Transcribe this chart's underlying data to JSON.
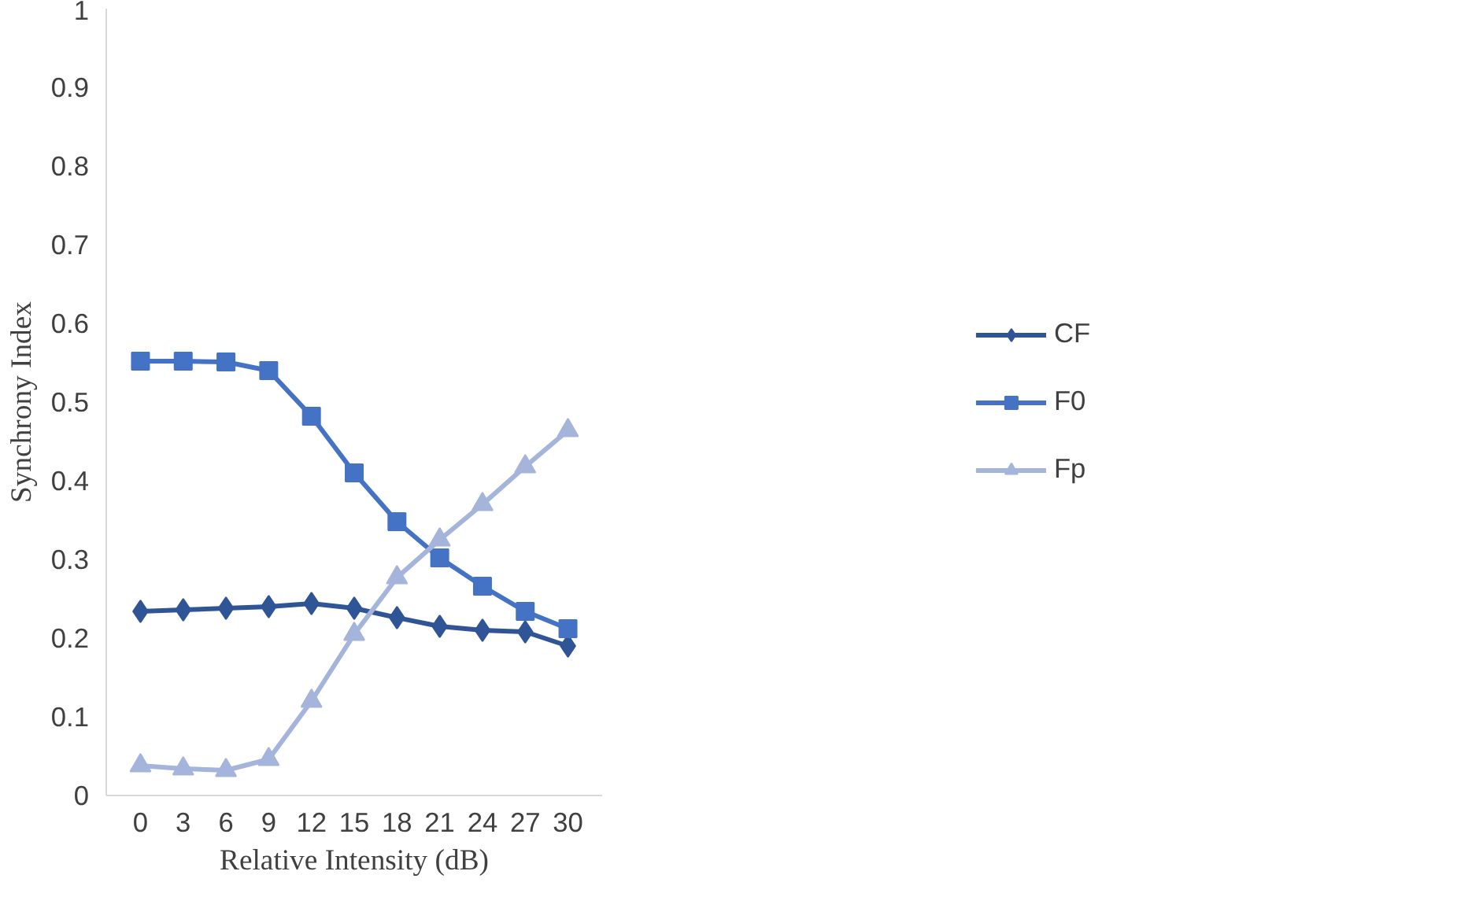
{
  "chart_data": {
    "type": "line",
    "xlabel": "Relative Intensity (dB)",
    "ylabel": "Synchrony Index",
    "categories": [
      "0",
      "3",
      "6",
      "9",
      "12",
      "15",
      "18",
      "21",
      "24",
      "27",
      "30"
    ],
    "series": [
      {
        "name": "CF",
        "color": "#2f5597",
        "marker": "diamond",
        "values": [
          0.234,
          0.236,
          0.238,
          0.24,
          0.244,
          0.238,
          0.226,
          0.215,
          0.21,
          0.208,
          0.19
        ]
      },
      {
        "name": "F0",
        "color": "#4472c4",
        "marker": "square",
        "values": [
          0.552,
          0.552,
          0.551,
          0.54,
          0.482,
          0.41,
          0.348,
          0.302,
          0.266,
          0.234,
          0.212
        ]
      },
      {
        "name": "Fp",
        "color": "#a5b4db",
        "marker": "triangle",
        "values": [
          0.038,
          0.034,
          0.032,
          0.046,
          0.12,
          0.205,
          0.277,
          0.325,
          0.37,
          0.418,
          0.464
        ]
      }
    ],
    "ylim": [
      0,
      1
    ],
    "yticks": [
      0,
      0.1,
      0.2,
      0.3,
      0.4,
      0.5,
      0.6,
      0.7,
      0.8,
      0.9,
      1
    ],
    "grid": false,
    "legend": "right",
    "line_style": "solid"
  }
}
